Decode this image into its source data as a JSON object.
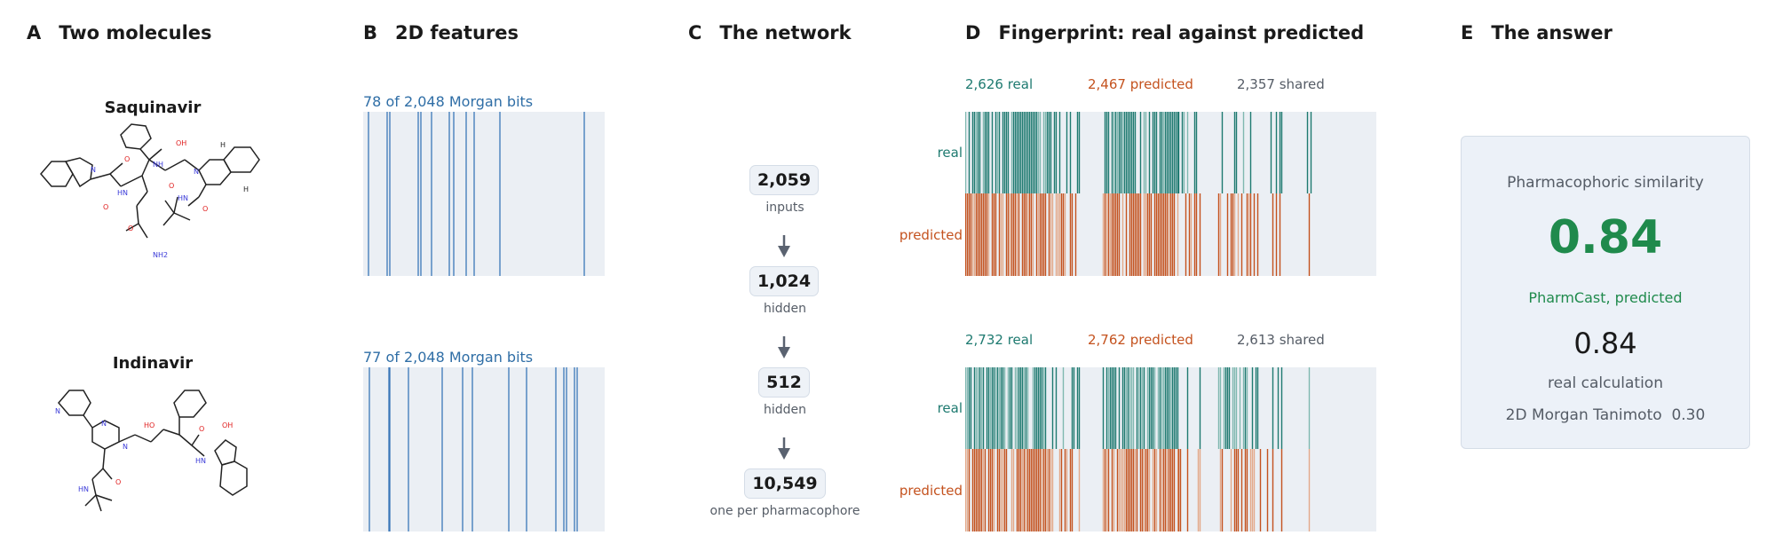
{
  "panels": {
    "a": {
      "letter": "A",
      "title": "Two molecules"
    },
    "b": {
      "letter": "B",
      "title": "2D features"
    },
    "c": {
      "letter": "C",
      "title": "The network"
    },
    "d": {
      "letter": "D",
      "title": "Fingerprint: real against predicted"
    },
    "e": {
      "letter": "E",
      "title": "The answer"
    }
  },
  "molecules": [
    {
      "name": "Saquinavir",
      "morgan_caption": "78 of 2,048 Morgan bits"
    },
    {
      "name": "Indinavir",
      "morgan_caption": "77 of 2,048 Morgan bits"
    }
  ],
  "atoms": {
    "saquinavir": [
      "N",
      "O",
      "HN",
      "O",
      "OH",
      "N",
      "H",
      "H",
      "O",
      "HN",
      "NH",
      "O",
      "O",
      "NH2"
    ],
    "indinavir": [
      "N",
      "N",
      "N",
      "HO",
      "OH",
      "O",
      "HN",
      "HN",
      "O"
    ]
  },
  "network": {
    "nodes": [
      {
        "value": "2,059",
        "label": "inputs"
      },
      {
        "value": "1,024",
        "label": "hidden"
      },
      {
        "value": "512",
        "label": "hidden"
      },
      {
        "value": "10,549",
        "label": "one per pharmacophore"
      }
    ]
  },
  "fingerprints": [
    {
      "real": "2,626 real",
      "predicted": "2,467 predicted",
      "shared": "2,357 shared",
      "row_real": "real",
      "row_predicted": "predicted"
    },
    {
      "real": "2,732 real",
      "predicted": "2,762 predicted",
      "shared": "2,613 shared",
      "row_real": "real",
      "row_predicted": "predicted"
    }
  ],
  "answer": {
    "heading": "Pharmacophoric similarity",
    "predicted_value": "0.84",
    "predicted_label": "PharmCast, predicted",
    "real_value": "0.84",
    "real_label": "real calculation",
    "morgan_line": "2D Morgan Tanimoto  0.30"
  },
  "colors": {
    "teal": "#1e7a70",
    "teal_light": "#7fb8b0",
    "orange": "#c4521e",
    "orange_light": "#e3a98a",
    "morgan_blue": "#3a77b8",
    "answer_green": "#1f8a4c",
    "box_bg": "#ebeff4"
  }
}
